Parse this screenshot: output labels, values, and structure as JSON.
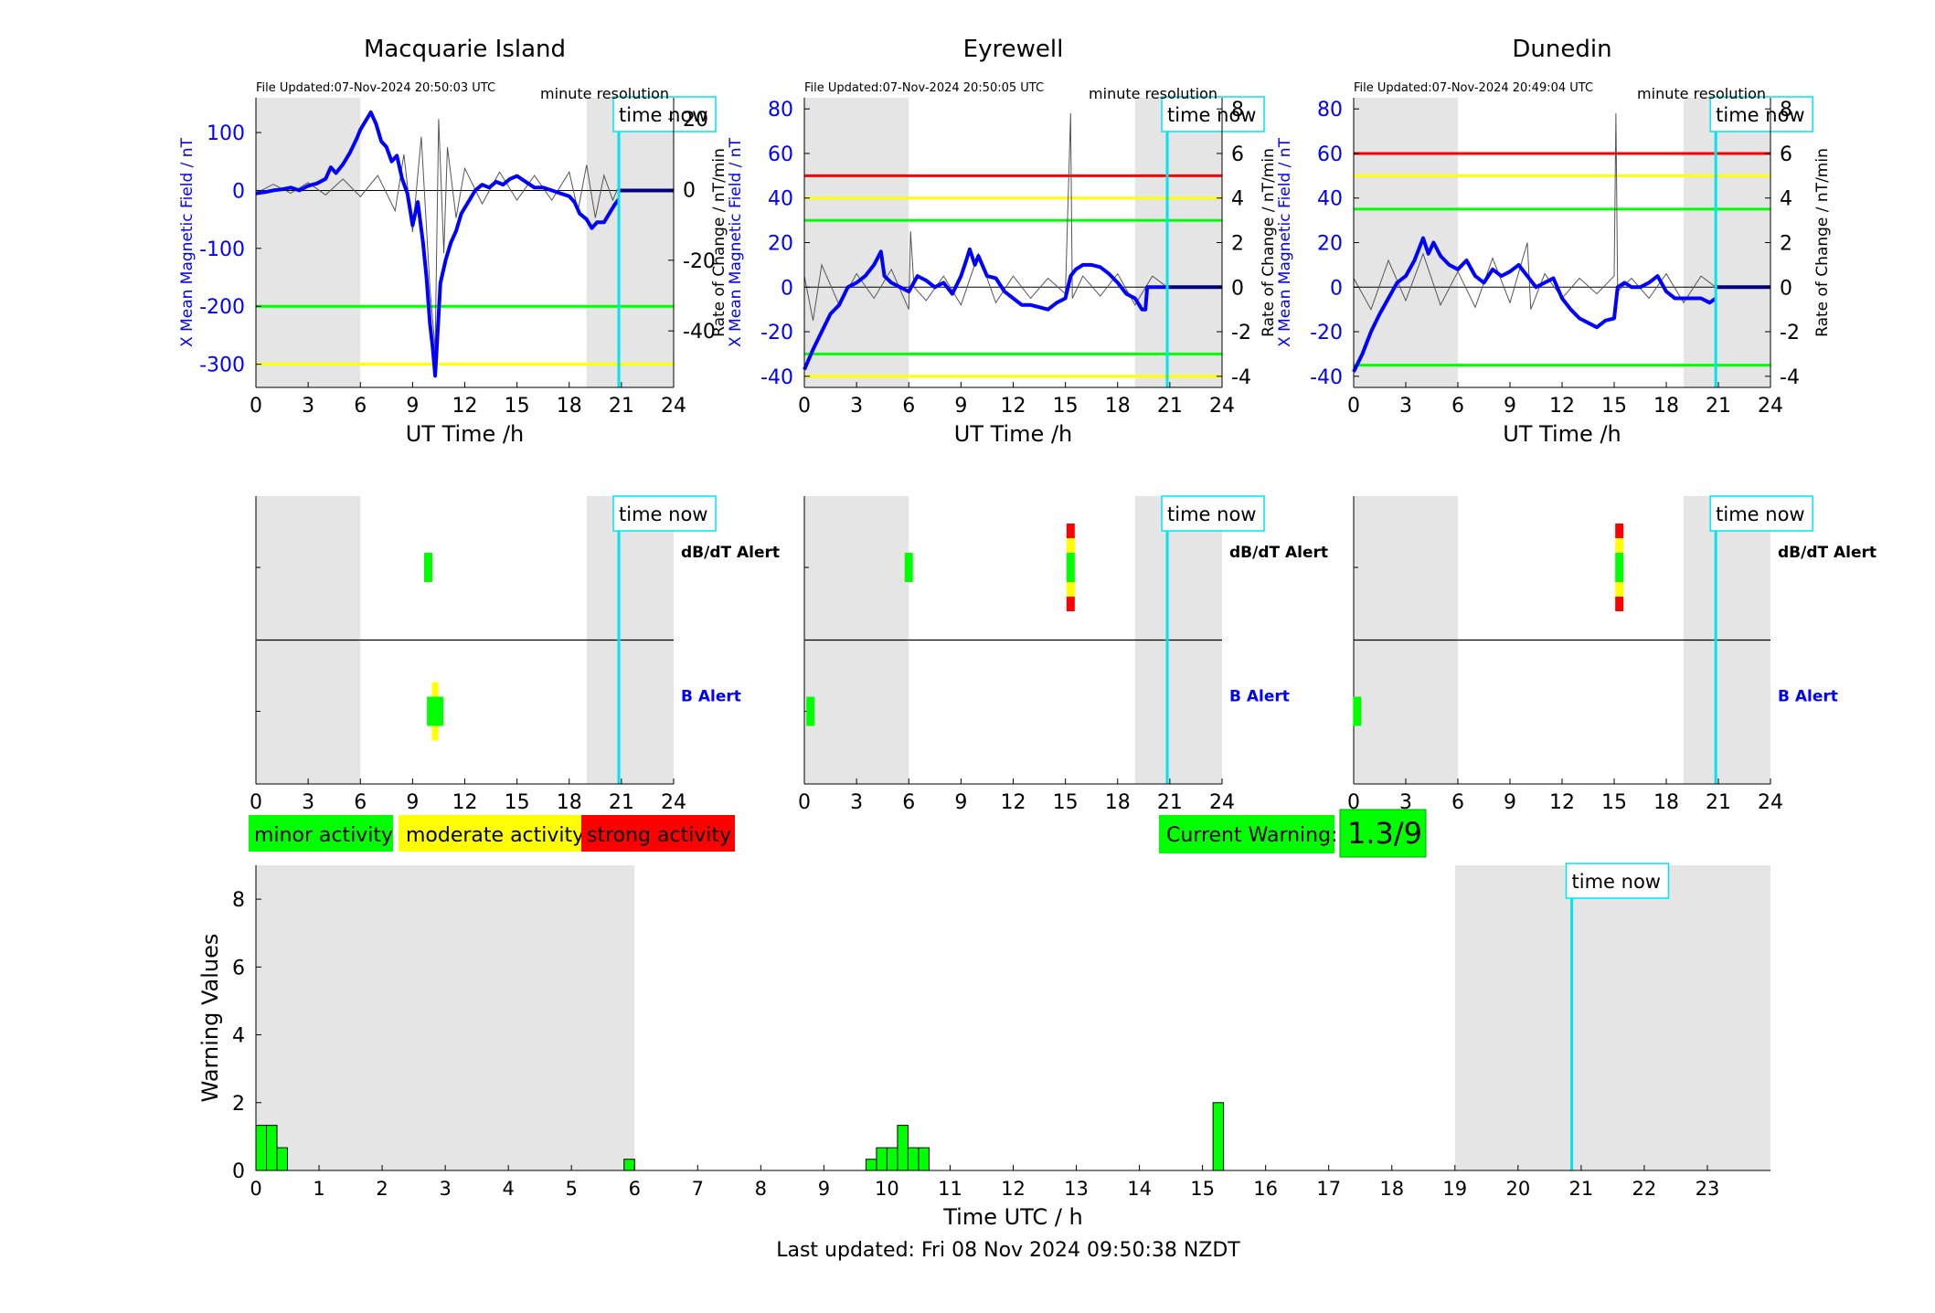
{
  "colors": {
    "blue": "#0000ff",
    "shade": "#e5e5e5",
    "green": "#00ff00",
    "yellow": "#ffff00",
    "red": "#ff0000",
    "cyan": "#00e5ee",
    "black": "#000000"
  },
  "time_now_label": "time now",
  "footer": "Last updated: Fri 08 Nov 2024 09:50:38 NZDT",
  "legend": {
    "minor": "minor activity",
    "moderate": "moderate activity",
    "strong": "strong activity"
  },
  "current_warning": {
    "label": "Current Warning:",
    "value": "1.3/9"
  },
  "chart_data": [
    {
      "type": "line",
      "panel": "magnetometer",
      "title": "Macquarie Island",
      "file_updated": "File Updated:07-Nov-2024 20:50:03 UTC",
      "resolution": "minute resolution",
      "xlabel": "UT Time /h",
      "ylabel_left": "X Mean Magnetic Field / nT",
      "ylabel_right": "",
      "xlim": [
        0,
        24
      ],
      "xticks": [
        0,
        3,
        6,
        9,
        12,
        15,
        18,
        21,
        24
      ],
      "ylim_left": [
        -340,
        160
      ],
      "yticks_left": [
        100,
        0,
        -100,
        -200,
        -300
      ],
      "ylim_right": [
        -56,
        26
      ],
      "yticks_right": [
        20,
        0,
        -20,
        -40
      ],
      "shaded_hours": [
        [
          0,
          6
        ],
        [
          19,
          24
        ]
      ],
      "time_now": 20.85,
      "thresholds": [
        {
          "level": "minor",
          "value": -200
        },
        {
          "level": "moderate",
          "value": -300
        }
      ],
      "series_x_mean": [
        [
          0,
          -5
        ],
        [
          0.5,
          -3
        ],
        [
          1,
          0
        ],
        [
          1.5,
          2
        ],
        [
          2,
          5
        ],
        [
          2.5,
          0
        ],
        [
          3,
          8
        ],
        [
          3.5,
          12
        ],
        [
          4,
          20
        ],
        [
          4.3,
          40
        ],
        [
          4.6,
          30
        ],
        [
          5,
          45
        ],
        [
          5.4,
          65
        ],
        [
          5.8,
          90
        ],
        [
          6,
          105
        ],
        [
          6.3,
          120
        ],
        [
          6.6,
          135
        ],
        [
          6.9,
          115
        ],
        [
          7.2,
          85
        ],
        [
          7.5,
          75
        ],
        [
          7.8,
          50
        ],
        [
          8.1,
          60
        ],
        [
          8.4,
          20
        ],
        [
          8.7,
          -5
        ],
        [
          9,
          -60
        ],
        [
          9.3,
          -20
        ],
        [
          9.6,
          -90
        ],
        [
          9.8,
          -150
        ],
        [
          10,
          -230
        ],
        [
          10.15,
          -270
        ],
        [
          10.3,
          -320
        ],
        [
          10.45,
          -240
        ],
        [
          10.6,
          -160
        ],
        [
          10.9,
          -120
        ],
        [
          11.2,
          -90
        ],
        [
          11.5,
          -70
        ],
        [
          11.8,
          -40
        ],
        [
          12.2,
          -20
        ],
        [
          12.6,
          0
        ],
        [
          13,
          10
        ],
        [
          13.4,
          5
        ],
        [
          13.8,
          15
        ],
        [
          14.2,
          10
        ],
        [
          14.6,
          20
        ],
        [
          15,
          25
        ],
        [
          15.5,
          15
        ],
        [
          16,
          5
        ],
        [
          16.5,
          5
        ],
        [
          17,
          0
        ],
        [
          17.5,
          -5
        ],
        [
          18,
          -10
        ],
        [
          18.3,
          -20
        ],
        [
          18.6,
          -40
        ],
        [
          19,
          -50
        ],
        [
          19.3,
          -65
        ],
        [
          19.6,
          -55
        ],
        [
          20,
          -55
        ],
        [
          20.3,
          -40
        ],
        [
          20.6,
          -25
        ],
        [
          20.85,
          -15
        ]
      ],
      "series_rate": [
        [
          0,
          -1
        ],
        [
          1,
          1.5
        ],
        [
          2,
          -1
        ],
        [
          3,
          2
        ],
        [
          4,
          -1.5
        ],
        [
          5,
          3
        ],
        [
          6,
          -2
        ],
        [
          7,
          4
        ],
        [
          8,
          -6
        ],
        [
          8.5,
          10
        ],
        [
          9,
          -12
        ],
        [
          9.5,
          15
        ],
        [
          10,
          -28
        ],
        [
          10.3,
          -45
        ],
        [
          10.5,
          20
        ],
        [
          10.8,
          -18
        ],
        [
          11,
          12
        ],
        [
          11.5,
          -8
        ],
        [
          12,
          6
        ],
        [
          13,
          -4
        ],
        [
          14,
          5
        ],
        [
          15,
          -3
        ],
        [
          16,
          4
        ],
        [
          17,
          -3
        ],
        [
          18,
          5
        ],
        [
          18.5,
          -6
        ],
        [
          19,
          7
        ],
        [
          19.5,
          -8
        ],
        [
          20,
          4
        ],
        [
          20.5,
          -3
        ],
        [
          20.85,
          1
        ]
      ]
    },
    {
      "type": "line",
      "panel": "magnetometer",
      "title": "Eyrewell",
      "file_updated": "File Updated:07-Nov-2024 20:50:05 UTC",
      "resolution": "minute resolution",
      "xlabel": "UT Time /h",
      "ylabel_left": "X Mean Magnetic Field / nT",
      "ylabel_right": "Rate of Change / nT/min",
      "xlim": [
        0,
        24
      ],
      "xticks": [
        0,
        3,
        6,
        9,
        12,
        15,
        18,
        21,
        24
      ],
      "ylim_left": [
        -45,
        85
      ],
      "yticks_left": [
        80,
        60,
        40,
        20,
        0,
        -20,
        -40
      ],
      "ylim_right": [
        -4.5,
        8.5
      ],
      "yticks_right": [
        8,
        6,
        4,
        2,
        0,
        -2,
        -4
      ],
      "shaded_hours": [
        [
          0,
          6
        ],
        [
          19,
          24
        ]
      ],
      "time_now": 20.85,
      "thresholds": [
        {
          "level": "strong",
          "value": 50
        },
        {
          "level": "moderate",
          "value": 40
        },
        {
          "level": "minor",
          "value": 30
        },
        {
          "level": "minor",
          "value": -30
        },
        {
          "level": "moderate",
          "value": -40
        }
      ],
      "series_x_mean": [
        [
          0,
          -37
        ],
        [
          0.5,
          -28
        ],
        [
          1,
          -20
        ],
        [
          1.5,
          -12
        ],
        [
          2,
          -8
        ],
        [
          2.5,
          0
        ],
        [
          3,
          2
        ],
        [
          3.5,
          5
        ],
        [
          4,
          10
        ],
        [
          4.4,
          16
        ],
        [
          4.6,
          5
        ],
        [
          5,
          2
        ],
        [
          5.5,
          0
        ],
        [
          6,
          -2
        ],
        [
          6.5,
          5
        ],
        [
          7,
          3
        ],
        [
          7.5,
          0
        ],
        [
          8,
          2
        ],
        [
          8.5,
          -3
        ],
        [
          9,
          5
        ],
        [
          9.3,
          12
        ],
        [
          9.5,
          17
        ],
        [
          9.8,
          10
        ],
        [
          10,
          14
        ],
        [
          10.5,
          5
        ],
        [
          11,
          4
        ],
        [
          11.5,
          -2
        ],
        [
          12,
          -5
        ],
        [
          12.5,
          -8
        ],
        [
          13,
          -8
        ],
        [
          13.5,
          -9
        ],
        [
          14,
          -10
        ],
        [
          14.5,
          -7
        ],
        [
          15,
          -5
        ],
        [
          15.3,
          5
        ],
        [
          15.6,
          8
        ],
        [
          16,
          10
        ],
        [
          16.5,
          10
        ],
        [
          17,
          9
        ],
        [
          17.5,
          6
        ],
        [
          18,
          2
        ],
        [
          18.5,
          -3
        ],
        [
          19,
          -5
        ],
        [
          19.4,
          -10
        ],
        [
          19.6,
          -10
        ],
        [
          19.7,
          0
        ],
        [
          20.85,
          0
        ]
      ],
      "series_rate": [
        [
          0,
          0.5
        ],
        [
          0.5,
          -1.5
        ],
        [
          1,
          1
        ],
        [
          2,
          -0.8
        ],
        [
          3,
          0.6
        ],
        [
          4,
          -0.5
        ],
        [
          5,
          0.8
        ],
        [
          6,
          -1
        ],
        [
          6.1,
          2.5
        ],
        [
          6.3,
          0
        ],
        [
          7,
          -0.6
        ],
        [
          8,
          0.5
        ],
        [
          9,
          -0.8
        ],
        [
          10,
          1.5
        ],
        [
          11,
          -0.7
        ],
        [
          12,
          0.5
        ],
        [
          13,
          -0.5
        ],
        [
          14,
          0.4
        ],
        [
          15,
          -0.3
        ],
        [
          15.3,
          7.8
        ],
        [
          15.4,
          -0.5
        ],
        [
          16,
          0.5
        ],
        [
          17,
          -0.4
        ],
        [
          18,
          0.6
        ],
        [
          19,
          -0.8
        ],
        [
          20,
          0.5
        ],
        [
          20.85,
          0
        ]
      ]
    },
    {
      "type": "line",
      "panel": "magnetometer",
      "title": "Dunedin",
      "file_updated": "File Updated:07-Nov-2024 20:49:04 UTC",
      "resolution": "minute resolution",
      "xlabel": "UT Time /h",
      "ylabel_left": "X Mean Magnetic Field / nT",
      "ylabel_right": "Rate of Change / nT/min",
      "xlim": [
        0,
        24
      ],
      "xticks": [
        0,
        3,
        6,
        9,
        12,
        15,
        18,
        21,
        24
      ],
      "ylim_left": [
        -45,
        85
      ],
      "yticks_left": [
        80,
        60,
        40,
        20,
        0,
        -20,
        -40
      ],
      "ylim_right": [
        -4.5,
        8.5
      ],
      "yticks_right": [
        8,
        6,
        4,
        2,
        0,
        -2,
        -4
      ],
      "shaded_hours": [
        [
          0,
          6
        ],
        [
          19,
          24
        ]
      ],
      "time_now": 20.85,
      "thresholds": [
        {
          "level": "strong",
          "value": 60
        },
        {
          "level": "moderate",
          "value": 50
        },
        {
          "level": "minor",
          "value": 35
        },
        {
          "level": "minor",
          "value": -35
        }
      ],
      "series_x_mean": [
        [
          0,
          -38
        ],
        [
          0.5,
          -30
        ],
        [
          1,
          -20
        ],
        [
          1.5,
          -12
        ],
        [
          2,
          -5
        ],
        [
          2.5,
          2
        ],
        [
          3,
          5
        ],
        [
          3.5,
          12
        ],
        [
          4,
          22
        ],
        [
          4.3,
          15
        ],
        [
          4.6,
          20
        ],
        [
          5,
          14
        ],
        [
          5.5,
          10
        ],
        [
          6,
          8
        ],
        [
          6.5,
          12
        ],
        [
          7,
          5
        ],
        [
          7.5,
          2
        ],
        [
          8,
          8
        ],
        [
          8.5,
          5
        ],
        [
          9,
          7
        ],
        [
          9.5,
          10
        ],
        [
          10,
          5
        ],
        [
          10.5,
          0
        ],
        [
          11,
          2
        ],
        [
          11.5,
          4
        ],
        [
          12,
          -5
        ],
        [
          12.5,
          -10
        ],
        [
          13,
          -14
        ],
        [
          13.5,
          -16
        ],
        [
          14,
          -18
        ],
        [
          14.5,
          -15
        ],
        [
          15,
          -14
        ],
        [
          15.2,
          0
        ],
        [
          15.6,
          2
        ],
        [
          16,
          0
        ],
        [
          16.5,
          0
        ],
        [
          17,
          2
        ],
        [
          17.5,
          5
        ],
        [
          18,
          -2
        ],
        [
          18.5,
          -5
        ],
        [
          19,
          -5
        ],
        [
          19.5,
          -5
        ],
        [
          20,
          -5
        ],
        [
          20.5,
          -7
        ],
        [
          20.85,
          -5
        ]
      ],
      "series_rate": [
        [
          0,
          0.4
        ],
        [
          1,
          -1
        ],
        [
          2,
          1.2
        ],
        [
          3,
          -0.6
        ],
        [
          4,
          1.5
        ],
        [
          5,
          -0.8
        ],
        [
          6,
          0.7
        ],
        [
          7,
          -0.9
        ],
        [
          8,
          1.3
        ],
        [
          9,
          -0.7
        ],
        [
          10,
          2
        ],
        [
          10.2,
          -1
        ],
        [
          11,
          0.6
        ],
        [
          12,
          -0.5
        ],
        [
          13,
          0.4
        ],
        [
          14,
          -0.3
        ],
        [
          15,
          0.5
        ],
        [
          15.1,
          7.8
        ],
        [
          15.2,
          -0.2
        ],
        [
          16,
          0.4
        ],
        [
          17,
          -0.5
        ],
        [
          18,
          0.6
        ],
        [
          19,
          -0.7
        ],
        [
          20,
          0.5
        ],
        [
          20.85,
          0
        ]
      ]
    },
    {
      "type": "heatmap",
      "panel": "alert",
      "rows": [
        "dB/dT Alert",
        "B Alert"
      ],
      "xlim": [
        0,
        24
      ],
      "xticks": [
        0,
        3,
        6,
        9,
        12,
        15,
        18,
        21,
        24
      ],
      "shaded_hours": [
        [
          0,
          6
        ],
        [
          19,
          24
        ]
      ],
      "time_now": 20.85,
      "dbdt_alerts": [
        {
          "t": 9.9,
          "levels": [
            "minor"
          ]
        }
      ],
      "b_alerts": [
        {
          "t": 10.3,
          "levels": [
            "moderate",
            "minor",
            "minor",
            "moderate"
          ]
        }
      ]
    },
    {
      "type": "heatmap",
      "panel": "alert",
      "rows": [
        "dB/dT Alert",
        "B Alert"
      ],
      "xlim": [
        0,
        24
      ],
      "xticks": [
        0,
        3,
        6,
        9,
        12,
        15,
        18,
        21,
        24
      ],
      "shaded_hours": [
        [
          0,
          6
        ],
        [
          19,
          24
        ]
      ],
      "time_now": 20.85,
      "dbdt_alerts": [
        {
          "t": 6.0,
          "levels": [
            "minor"
          ]
        },
        {
          "t": 15.3,
          "levels": [
            "strong",
            "moderate",
            "minor",
            "minor",
            "moderate",
            "strong"
          ]
        }
      ],
      "b_alerts": [
        {
          "t": 0.35,
          "levels": [
            "minor"
          ]
        }
      ]
    },
    {
      "type": "heatmap",
      "panel": "alert",
      "rows": [
        "dB/dT Alert",
        "B Alert"
      ],
      "xlim": [
        0,
        24
      ],
      "xticks": [
        0,
        3,
        6,
        9,
        12,
        15,
        18,
        21,
        24
      ],
      "shaded_hours": [
        [
          0,
          6
        ],
        [
          19,
          24
        ]
      ],
      "time_now": 20.85,
      "dbdt_alerts": [
        {
          "t": 15.3,
          "levels": [
            "strong",
            "moderate",
            "minor",
            "minor",
            "moderate",
            "strong"
          ]
        }
      ],
      "b_alerts": [
        {
          "t": 0.2,
          "levels": [
            "minor"
          ]
        }
      ]
    },
    {
      "type": "bar",
      "panel": "warning",
      "xlabel": "Time UTC / h",
      "ylabel": "Warning Values",
      "xlim": [
        0,
        24
      ],
      "xticks": [
        0,
        1,
        2,
        3,
        4,
        5,
        6,
        7,
        8,
        9,
        10,
        11,
        12,
        13,
        14,
        15,
        16,
        17,
        18,
        19,
        20,
        21,
        22,
        23
      ],
      "ylim": [
        0,
        9
      ],
      "yticks": [
        0,
        2,
        4,
        6,
        8
      ],
      "shaded_hours": [
        [
          0,
          6
        ],
        [
          19,
          24
        ]
      ],
      "time_now": 20.85,
      "bin_width": 0.1667,
      "bars": [
        [
          0,
          1.33
        ],
        [
          0.1667,
          1.33
        ],
        [
          0.3333,
          0.67
        ],
        [
          5.8333,
          0.33
        ],
        [
          9.6667,
          0.33
        ],
        [
          9.8333,
          0.67
        ],
        [
          10,
          0.67
        ],
        [
          10.1667,
          1.33
        ],
        [
          10.3333,
          0.67
        ],
        [
          10.5,
          0.67
        ],
        [
          15.1667,
          2.0
        ]
      ]
    }
  ]
}
